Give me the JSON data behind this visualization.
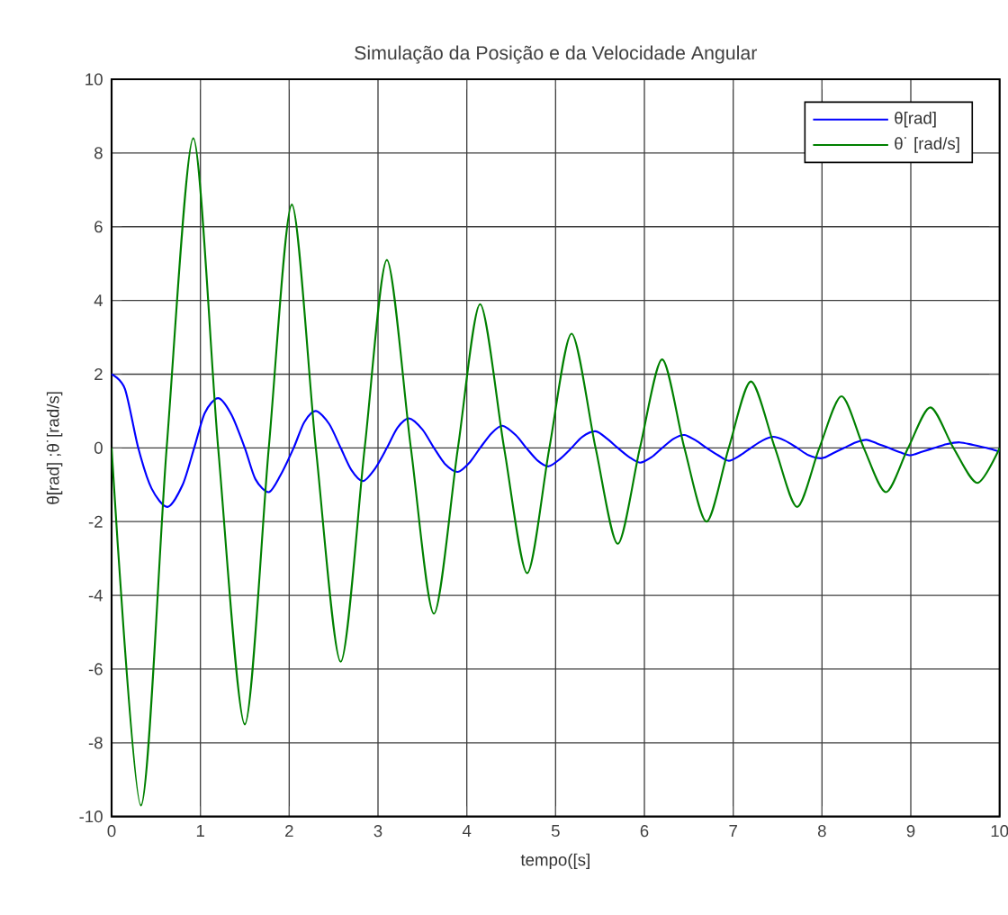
{
  "chart_data": {
    "type": "line",
    "title": "Simulação da Posição e da Velocidade Angular",
    "xlabel": "tempo([s]",
    "ylabel": "θ[rad] ;θ˙[rad/s]",
    "xlim": [
      0,
      10
    ],
    "ylim": [
      -10,
      10
    ],
    "xticks": [
      0,
      1,
      2,
      3,
      4,
      5,
      6,
      7,
      8,
      9,
      10
    ],
    "yticks": [
      -10,
      -8,
      -6,
      -4,
      -2,
      0,
      2,
      4,
      6,
      8,
      10
    ],
    "grid": true,
    "legend": "top right",
    "line_style": "solid",
    "marker": "none",
    "series": [
      {
        "name": "θ[rad]",
        "color": "#0000ff",
        "x": [
          0,
          0.15,
          0.3,
          0.45,
          0.63,
          0.8,
          0.93,
          1.05,
          1.2,
          1.35,
          1.5,
          1.62,
          1.77,
          1.9,
          2.05,
          2.17,
          2.3,
          2.45,
          2.58,
          2.7,
          2.83,
          2.97,
          3.1,
          3.22,
          3.35,
          3.5,
          3.63,
          3.76,
          3.9,
          4.03,
          4.15,
          4.28,
          4.4,
          4.55,
          4.67,
          4.8,
          4.92,
          5.05,
          5.18,
          5.3,
          5.45,
          5.58,
          5.7,
          5.83,
          5.95,
          6.08,
          6.2,
          6.33,
          6.45,
          6.58,
          6.7,
          6.83,
          6.95,
          7.08,
          7.2,
          7.33,
          7.45,
          7.58,
          7.72,
          7.85,
          8.0,
          8.12,
          8.25,
          8.38,
          8.5,
          8.62,
          8.75,
          8.88,
          9.0,
          9.13,
          9.27,
          9.4,
          9.55,
          9.7,
          9.85,
          10
        ],
        "values": [
          2,
          1.6,
          0,
          -1.1,
          -1.6,
          -1.0,
          0,
          0.95,
          1.35,
          0.9,
          0,
          -0.85,
          -1.2,
          -0.75,
          0,
          0.7,
          1.0,
          0.65,
          0,
          -0.6,
          -0.9,
          -0.55,
          0,
          0.55,
          0.8,
          0.5,
          0,
          -0.45,
          -0.65,
          -0.4,
          0,
          0.4,
          0.6,
          0.35,
          0,
          -0.35,
          -0.5,
          -0.3,
          0,
          0.3,
          0.45,
          0.25,
          0,
          -0.25,
          -0.4,
          -0.25,
          0,
          0.25,
          0.35,
          0.2,
          0,
          -0.2,
          -0.35,
          -0.2,
          0,
          0.2,
          0.3,
          0.2,
          0,
          -0.2,
          -0.28,
          -0.15,
          0,
          0.15,
          0.22,
          0.12,
          0,
          -0.12,
          -0.2,
          -0.1,
          0,
          0.1,
          0.15,
          0.08,
          0,
          -0.1
        ]
      },
      {
        "name": "θ˙ [rad/s]",
        "color": "#008000",
        "x": [
          0,
          0.33,
          0.62,
          0.92,
          1.2,
          1.5,
          1.77,
          2.03,
          2.3,
          2.58,
          2.85,
          3.1,
          3.37,
          3.63,
          3.9,
          4.15,
          4.42,
          4.68,
          4.93,
          5.18,
          5.45,
          5.7,
          5.95,
          6.2,
          6.45,
          6.7,
          6.95,
          7.2,
          7.47,
          7.72,
          7.97,
          8.22,
          8.47,
          8.72,
          8.97,
          9.22,
          9.48,
          9.75,
          10
        ],
        "values": [
          0,
          -9.7,
          0,
          8.4,
          0,
          -7.5,
          0,
          6.6,
          0,
          -5.8,
          0,
          5.1,
          0,
          -4.5,
          0,
          3.9,
          0,
          -3.4,
          0,
          3.1,
          0,
          -2.6,
          0,
          2.4,
          0,
          -2.0,
          0,
          1.8,
          0,
          -1.6,
          0,
          1.4,
          0,
          -1.2,
          0,
          1.1,
          0,
          -0.95,
          0
        ]
      }
    ]
  }
}
